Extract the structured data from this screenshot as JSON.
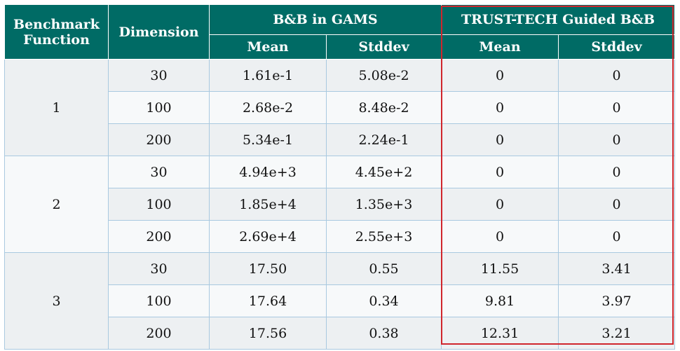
{
  "header": {
    "benchmark": "Benchmark Function",
    "dimension": "Dimension",
    "group1": "B&B in GAMS",
    "group2": "TRUST-TECH Guided B&B",
    "mean": "Mean",
    "stddev": "Stddev"
  },
  "colors": {
    "header_bg": "#006b65",
    "highlight": "#d0262d"
  },
  "groups": [
    {
      "func": "1",
      "rows": [
        {
          "dim": "30",
          "gams_mean": "1.61e-1",
          "gams_std": "5.08e-2",
          "tt_mean": "0",
          "tt_std": "0"
        },
        {
          "dim": "100",
          "gams_mean": "2.68e-2",
          "gams_std": "8.48e-2",
          "tt_mean": "0",
          "tt_std": "0"
        },
        {
          "dim": "200",
          "gams_mean": "5.34e-1",
          "gams_std": "2.24e-1",
          "tt_mean": "0",
          "tt_std": "0"
        }
      ]
    },
    {
      "func": "2",
      "rows": [
        {
          "dim": "30",
          "gams_mean": "4.94e+3",
          "gams_std": "4.45e+2",
          "tt_mean": "0",
          "tt_std": "0"
        },
        {
          "dim": "100",
          "gams_mean": "1.85e+4",
          "gams_std": "1.35e+3",
          "tt_mean": "0",
          "tt_std": "0"
        },
        {
          "dim": "200",
          "gams_mean": "2.69e+4",
          "gams_std": "2.55e+3",
          "tt_mean": "0",
          "tt_std": "0"
        }
      ]
    },
    {
      "func": "3",
      "rows": [
        {
          "dim": "30",
          "gams_mean": "17.50",
          "gams_std": "0.55",
          "tt_mean": "11.55",
          "tt_std": "3.41"
        },
        {
          "dim": "100",
          "gams_mean": "17.64",
          "gams_std": "0.34",
          "tt_mean": "9.81",
          "tt_std": "3.97"
        },
        {
          "dim": "200",
          "gams_mean": "17.56",
          "gams_std": "0.38",
          "tt_mean": "12.31",
          "tt_std": "3.21"
        }
      ]
    }
  ]
}
